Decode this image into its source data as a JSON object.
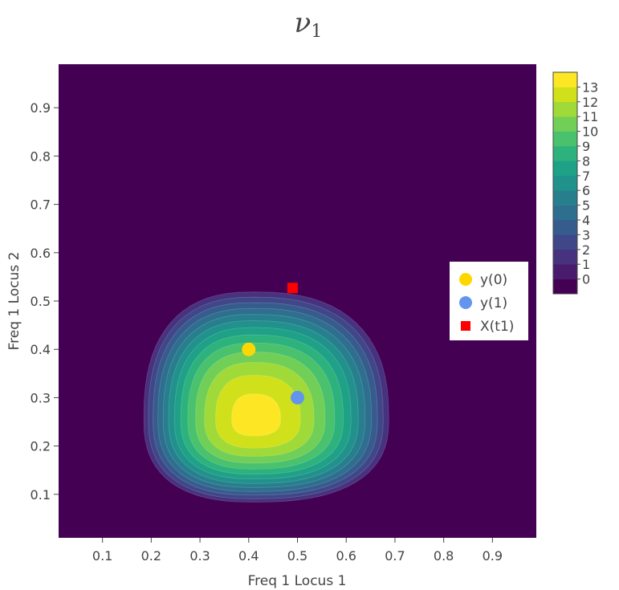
{
  "chart_data": {
    "type": "contour",
    "title": {
      "symbol": "ν",
      "subscript": "1"
    },
    "xlabel": "Freq 1 Locus 1",
    "ylabel": "Freq 1 Locus 2",
    "xlim": [
      0.01,
      0.99
    ],
    "ylim": [
      0.01,
      0.99
    ],
    "x_ticks": [
      "0.1",
      "0.2",
      "0.3",
      "0.4",
      "0.5",
      "0.6",
      "0.7",
      "0.8",
      "0.9"
    ],
    "y_ticks": [
      "0.1",
      "0.2",
      "0.3",
      "0.4",
      "0.5",
      "0.6",
      "0.7",
      "0.8",
      "0.9"
    ],
    "grid": false,
    "colorscale": "viridis",
    "contour_levels": [
      0,
      1,
      2,
      3,
      4,
      5,
      6,
      7,
      8,
      9,
      10,
      11,
      12,
      13
    ],
    "colorbar_ticks": [
      "0",
      "1",
      "2",
      "3",
      "4",
      "5",
      "6",
      "7",
      "8",
      "9",
      "10",
      "11",
      "12",
      "13"
    ],
    "density_peak": {
      "x": 0.41,
      "y": 0.255,
      "value": 13.5
    },
    "points": [
      {
        "name": "y(0)",
        "x": 0.4,
        "y": 0.4,
        "marker": "circle",
        "color": "#FFD700"
      },
      {
        "name": "y(1)",
        "x": 0.5,
        "y": 0.3,
        "marker": "circle",
        "color": "#6495ED"
      },
      {
        "name": "X(t1)",
        "x": 0.49,
        "y": 0.527,
        "marker": "square",
        "color": "#FF0000"
      }
    ],
    "legend_position": "right",
    "colorbar_position": "right"
  }
}
